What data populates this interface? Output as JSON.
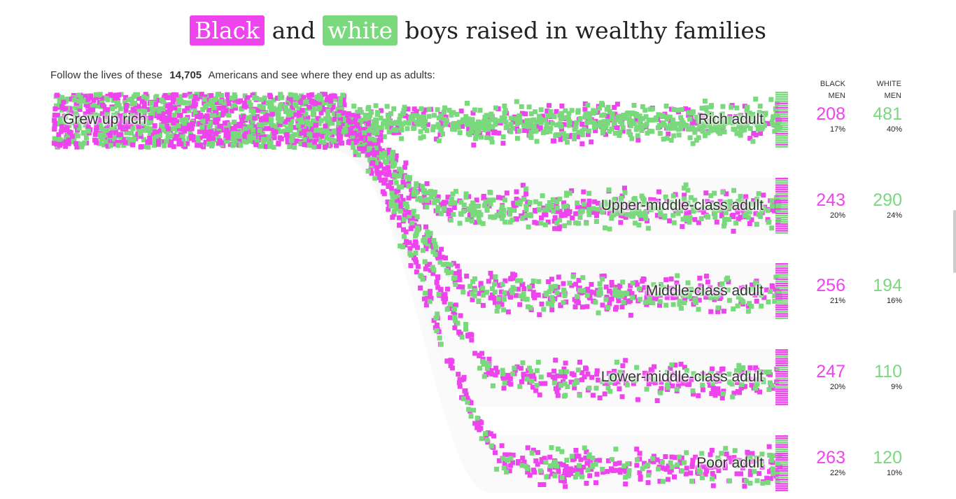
{
  "title": {
    "black_word": "Black",
    "and_word": "and",
    "white_word": "white",
    "rest": "boys raised in wealthy families"
  },
  "intro": {
    "before": "Follow the lives of these",
    "count": "14,705",
    "after": "Americans and see where they end up as adults:"
  },
  "columns": {
    "black": [
      "BLACK",
      "MEN"
    ],
    "white": [
      "WHITE",
      "MEN"
    ]
  },
  "colors": {
    "black": "#ee44ee",
    "white": "#7ad87d"
  },
  "chart_data": {
    "type": "flow",
    "source": "Grew up rich",
    "outcomes": [
      {
        "label": "Rich adult",
        "black": 208,
        "black_pct": "17%",
        "white": 481,
        "white_pct": "40%"
      },
      {
        "label": "Upper-middle-class adult",
        "black": 243,
        "black_pct": "20%",
        "white": 290,
        "white_pct": "24%"
      },
      {
        "label": "Middle-class adult",
        "black": 256,
        "black_pct": "21%",
        "white": 194,
        "white_pct": "16%"
      },
      {
        "label": "Lower-middle-class adult",
        "black": 247,
        "black_pct": "20%",
        "white": 110,
        "white_pct": "9%"
      },
      {
        "label": "Poor adult",
        "black": 263,
        "black_pct": "22%",
        "white": 120,
        "white_pct": "10%"
      }
    ]
  }
}
